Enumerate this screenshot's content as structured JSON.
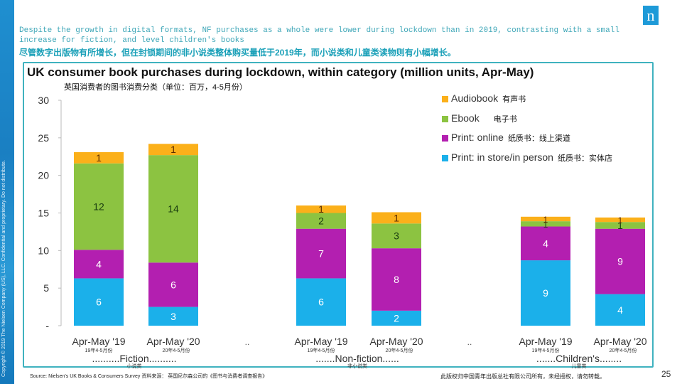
{
  "header": {
    "headline_en": "Despite the growth in digital formats, NF purchases as a whole were lower during lockdown than in 2019, contrasting with a small increase for fiction, and level children's books",
    "headline_zh": "尽管数字出版物有所增长，但在封锁期间的非小说类整体购买量低于2019年，而小说类和儿童类读物则有小幅增长。",
    "logo_letter": "n"
  },
  "sidebar": {
    "copyright": "Copyright © 2019 The Nielsen Company (US), LLC. Confidential and proprietary. Do not distribute."
  },
  "footer": {
    "source": "Source: Nielsen's UK Books & Consumers Survey 资料来源： 英国尼尔森公司的《图书与消费者调查报告》",
    "copyright_cn": "此版权归中国青年出版总社有限公司所有，未经授权，请勿转载。",
    "page_number": "25"
  },
  "colors": {
    "audiobook": "#fbb01a",
    "ebook": "#8cc341",
    "print_online": "#b31fb0",
    "print_store": "#1bb0ea",
    "frame": "#3fb2bf"
  },
  "chart_data": {
    "type": "bar",
    "stacked": true,
    "title": "UK consumer book purchases during lockdown, within category (million units, Apr-May)",
    "subtitle": "英国消费者的图书消费分类（单位：百万，4-5月份）",
    "ylim": [
      0,
      30
    ],
    "yticks": [
      "-",
      "5",
      "10",
      "15",
      "20",
      "25",
      "30"
    ],
    "ytick_values": [
      0,
      5,
      10,
      15,
      20,
      25,
      30
    ],
    "categories": [
      "Apr-May '19",
      "Apr-May '20",
      "Apr-May '19",
      "Apr-May '20",
      "Apr-May '19",
      "Apr-May '20"
    ],
    "categories_zh": [
      "19年4-5月份",
      "20年4-5月份",
      "19年4-5月份",
      "20年4-5月份",
      "19年4-5月份",
      "20年4-5月份"
    ],
    "separators": [
      "..",
      ".."
    ],
    "groups": [
      {
        "label": "..........Fiction..........",
        "label_zh": "小说类"
      },
      {
        "label": ".......Non-fiction......",
        "label_zh": "非小说类"
      },
      {
        "label": ".......Children's........",
        "label_zh": "儿童类"
      }
    ],
    "series": [
      {
        "name": "Print: in store/in person",
        "name_zh": "纸质书：实体店",
        "values": [
          6.3,
          2.5,
          6.3,
          2.0,
          8.7,
          4.2
        ],
        "labels": [
          "6",
          "3",
          "6",
          "2",
          "9",
          "4"
        ]
      },
      {
        "name": "Print: online",
        "name_zh": "纸质书：线上渠道",
        "values": [
          3.8,
          5.9,
          6.6,
          8.3,
          4.5,
          8.7
        ],
        "labels": [
          "4",
          "6",
          "7",
          "8",
          "4",
          "9"
        ]
      },
      {
        "name": "Ebook",
        "name_zh": "电子书",
        "values": [
          11.5,
          14.3,
          2.1,
          3.3,
          0.7,
          0.9
        ],
        "labels": [
          "12",
          "14",
          "2",
          "3",
          "1",
          "1"
        ]
      },
      {
        "name": "Audiobook",
        "name_zh": "有声书",
        "values": [
          1.5,
          1.5,
          1.0,
          1.5,
          0.6,
          0.6
        ],
        "labels": [
          "1",
          "1",
          "1",
          "1",
          "1",
          "1"
        ]
      }
    ],
    "legend_position": "top-right"
  }
}
